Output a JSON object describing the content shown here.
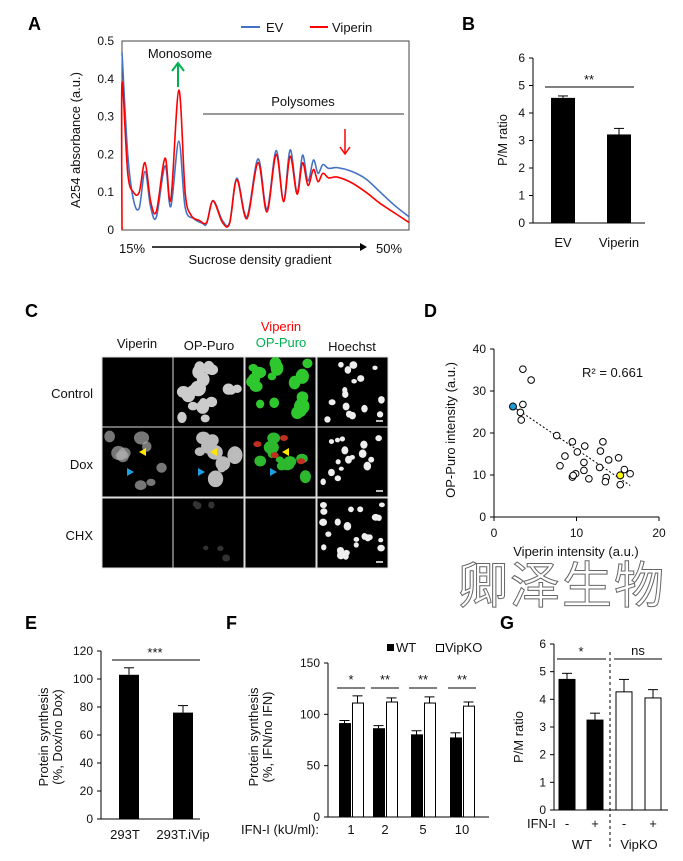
{
  "panel_labels": {
    "A": "A",
    "B": "B",
    "C": "C",
    "D": "D",
    "E": "E",
    "F": "F",
    "G": "G"
  },
  "colors": {
    "ev": "#4472c4",
    "viperin": "#ff0000",
    "green_arrow": "#00b050",
    "red_arrow": "#ff0000",
    "blue_cell": "#1e9ad6",
    "yellow_cell": "#ffff00"
  },
  "chart_data": [
    {
      "id": "A",
      "type": "line",
      "legend": [
        "EV",
        "Viperin"
      ],
      "ylabel": "A254 absorbance (a.u.)",
      "xlabel": "Sucrose density gradient",
      "x_start_label": "15%",
      "x_end_label": "50%",
      "ylim": [
        0,
        0.5
      ],
      "yticks": [
        "0",
        "0.1",
        "0.2",
        "0.3",
        "0.4",
        "0.5"
      ],
      "xlim": [
        0,
        100
      ],
      "annotations": {
        "monosome": "Monosome",
        "polysomes": "Polysomes"
      },
      "series": [
        {
          "name": "EV",
          "points": [
            [
              0,
              0.47
            ],
            [
              2,
              0.2
            ],
            [
              4,
              0.08
            ],
            [
              6,
              0.058
            ],
            [
              8,
              0.155
            ],
            [
              10,
              0.06
            ],
            [
              12,
              0.035
            ],
            [
              15,
              0.17
            ],
            [
              17,
              0.062
            ],
            [
              19.8,
              0.235
            ],
            [
              22,
              0.06
            ],
            [
              25,
              0.03
            ],
            [
              28,
              0.018
            ],
            [
              29.5,
              0.017
            ],
            [
              31.7,
              0.078
            ],
            [
              35,
              0.025
            ],
            [
              37.5,
              0.02
            ],
            [
              40,
              0.137
            ],
            [
              43.5,
              0.035
            ],
            [
              47.4,
              0.188
            ],
            [
              50.5,
              0.055
            ],
            [
              53.7,
              0.21
            ],
            [
              56.3,
              0.078
            ],
            [
              58.6,
              0.212
            ],
            [
              61,
              0.1
            ],
            [
              62.9,
              0.198
            ],
            [
              64.8,
              0.13
            ],
            [
              66.7,
              0.185
            ],
            [
              68.3,
              0.15
            ],
            [
              70,
              0.173
            ],
            [
              72,
              0.163
            ],
            [
              75,
              0.165
            ],
            [
              80,
              0.155
            ],
            [
              85,
              0.135
            ],
            [
              90,
              0.1
            ],
            [
              95,
              0.065
            ],
            [
              100,
              0.035
            ]
          ]
        },
        {
          "name": "Viperin",
          "points": [
            [
              0,
              0.0
            ],
            [
              0,
              0.39
            ],
            [
              2,
              0.15
            ],
            [
              4,
              0.1
            ],
            [
              6,
              0.1
            ],
            [
              8,
              0.178
            ],
            [
              10,
              0.075
            ],
            [
              12,
              0.05
            ],
            [
              15,
              0.19
            ],
            [
              17,
              0.08
            ],
            [
              19.8,
              0.37
            ],
            [
              22,
              0.1
            ],
            [
              24,
              0.04
            ],
            [
              27,
              0.025
            ],
            [
              29.5,
              0.02
            ],
            [
              31.7,
              0.077
            ],
            [
              35,
              0.02
            ],
            [
              37.5,
              0.018
            ],
            [
              40,
              0.133
            ],
            [
              43.5,
              0.03
            ],
            [
              47.4,
              0.178
            ],
            [
              50.5,
              0.048
            ],
            [
              53.7,
              0.2
            ],
            [
              56.3,
              0.075
            ],
            [
              58.6,
              0.195
            ],
            [
              61,
              0.095
            ],
            [
              62.9,
              0.178
            ],
            [
              64.8,
              0.118
            ],
            [
              66.7,
              0.16
            ],
            [
              68.3,
              0.128
            ],
            [
              70,
              0.15
            ],
            [
              72,
              0.138
            ],
            [
              75,
              0.14
            ],
            [
              80,
              0.125
            ],
            [
              85,
              0.1
            ],
            [
              90,
              0.07
            ],
            [
              95,
              0.045
            ],
            [
              100,
              0.02
            ]
          ]
        }
      ]
    },
    {
      "id": "B",
      "type": "bar",
      "ylabel": "P/M ratio",
      "ylim": [
        0,
        6
      ],
      "yticks": [
        "0",
        "1",
        "2",
        "3",
        "4",
        "5",
        "6"
      ],
      "categories": [
        "EV",
        "Viperin"
      ],
      "values": [
        4.55,
        3.22
      ],
      "errors": [
        0.07,
        0.22
      ],
      "significance": "**"
    },
    {
      "id": "D",
      "type": "scatter",
      "xlabel": "Viperin intensity (a.u.)",
      "ylabel": "OP-Puro intensity (a.u.)",
      "xlim": [
        0,
        20
      ],
      "ylim": [
        0,
        40
      ],
      "xticks": [
        "0",
        "10",
        "20"
      ],
      "yticks": [
        "0",
        "10",
        "20",
        "30",
        "40"
      ],
      "annotation": "R² = 0.661",
      "trendline": [
        [
          2.3,
          26.3
        ],
        [
          16.5,
          7.5
        ]
      ],
      "highlight": {
        "blue": [
          2.3,
          26.3
        ],
        "yellow": [
          15.3,
          9.9
        ]
      },
      "points": [
        [
          3.5,
          35.2
        ],
        [
          4.5,
          32.6
        ],
        [
          3.5,
          26.8
        ],
        [
          3.2,
          24.9
        ],
        [
          3.3,
          23.1
        ],
        [
          7.6,
          19.4
        ],
        [
          9.5,
          17.9
        ],
        [
          11,
          16.9
        ],
        [
          13.2,
          17.9
        ],
        [
          12.9,
          15.7
        ],
        [
          10.1,
          15.5
        ],
        [
          8.6,
          14.5
        ],
        [
          15.1,
          14.1
        ],
        [
          13.9,
          13.6
        ],
        [
          10.9,
          13.0
        ],
        [
          8.0,
          12.2
        ],
        [
          12.8,
          11.8
        ],
        [
          10.9,
          11.1
        ],
        [
          15.8,
          11.3
        ],
        [
          9.9,
          10.3
        ],
        [
          9.5,
          9.5
        ],
        [
          9.6,
          9.9
        ],
        [
          11.5,
          9.1
        ],
        [
          13.6,
          9.4
        ],
        [
          13.5,
          8.4
        ],
        [
          16.5,
          10.3
        ],
        [
          15.3,
          7.7
        ]
      ]
    },
    {
      "id": "E",
      "type": "bar",
      "ylabel_lines": [
        "Protein synthesis",
        "(%, Dox/no Dox)"
      ],
      "ylim": [
        0,
        120
      ],
      "yticks": [
        "0",
        "20",
        "40",
        "60",
        "80",
        "100",
        "120"
      ],
      "categories": [
        "293T",
        "293T.iVip"
      ],
      "values": [
        103,
        76
      ],
      "errors": [
        5,
        5
      ],
      "significance": "***"
    },
    {
      "id": "F",
      "type": "bar",
      "ylabel_lines": [
        "Protein synthesis",
        "(%, IFN/no IFN)"
      ],
      "ylim": [
        0,
        150
      ],
      "yticks": [
        "0",
        "50",
        "100",
        "150"
      ],
      "x_prefix": "IFN-I (kU/ml):",
      "categories": [
        "1",
        "2",
        "5",
        "10"
      ],
      "series": [
        {
          "name": "WT",
          "values": [
            91,
            86,
            80,
            77
          ],
          "errors": [
            3,
            3,
            4,
            5
          ]
        },
        {
          "name": "VipKO",
          "values": [
            111,
            112,
            111,
            108
          ],
          "errors": [
            7,
            4,
            6,
            4
          ]
        }
      ],
      "significance": [
        "*",
        "**",
        "**",
        "**"
      ]
    },
    {
      "id": "G",
      "type": "bar",
      "ylabel": "P/M ratio",
      "ylim": [
        0,
        6
      ],
      "yticks": [
        "0",
        "1",
        "2",
        "3",
        "4",
        "5",
        "6"
      ],
      "x_prefix": "IFN-I",
      "treatment": [
        "-",
        "+",
        "-",
        "+"
      ],
      "groups": [
        "WT",
        "VipKO"
      ],
      "values": [
        4.72,
        3.25,
        4.27,
        4.05
      ],
      "errors": [
        0.22,
        0.25,
        0.45,
        0.3
      ],
      "fills": [
        "filled",
        "filled",
        "open",
        "open"
      ],
      "significance": [
        "*",
        "ns"
      ]
    }
  ],
  "figure_c": {
    "columns": [
      "Viperin",
      "OP-Puro",
      "Hoechst"
    ],
    "merge_top": "Viperin",
    "merge_bottom": "OP-Puro",
    "rows": [
      "Control",
      "Dox",
      "CHX"
    ]
  },
  "watermark": "卿泽生物"
}
